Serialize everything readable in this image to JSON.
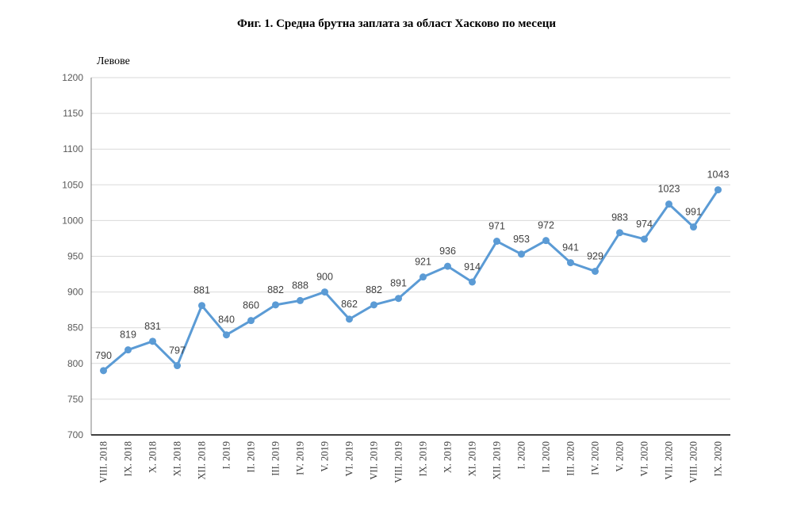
{
  "chart_data": {
    "type": "line",
    "title": "Фиг. 1. Средна брутна заплата за област Хасково по месеци",
    "ylabel": "Левове",
    "xlabel": "",
    "ylim": [
      700,
      1200
    ],
    "yticks": [
      700,
      750,
      800,
      850,
      900,
      950,
      1000,
      1050,
      1100,
      1150,
      1200
    ],
    "grid": true,
    "legend": "none",
    "color": "#5B9BD5",
    "categories": [
      "VIII. 2018",
      "IX. 2018",
      "X. 2018",
      "XI. 2018",
      "XII. 2018",
      "I. 2019",
      "II. 2019",
      "III. 2019",
      "IV. 2019",
      "V. 2019",
      "VI. 2019",
      "VII. 2019",
      "VIII. 2019",
      "IX. 2019",
      "X. 2019",
      "XI. 2019",
      "XII. 2019",
      "I. 2020",
      "II. 2020",
      "III. 2020",
      "IV. 2020",
      "V. 2020",
      "VI. 2020",
      "VII. 2020",
      "VIII. 2020",
      "IX. 2020"
    ],
    "values": [
      790,
      819,
      831,
      797,
      881,
      840,
      860,
      882,
      888,
      900,
      862,
      882,
      891,
      921,
      936,
      914,
      971,
      953,
      972,
      941,
      929,
      983,
      974,
      1023,
      991,
      1043
    ]
  }
}
